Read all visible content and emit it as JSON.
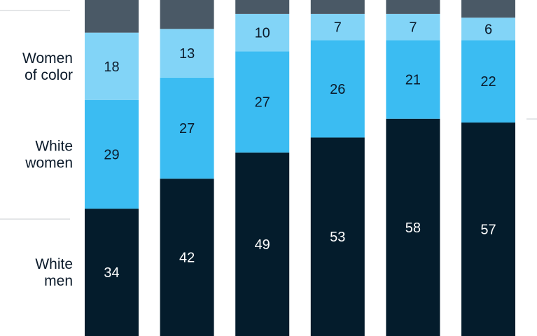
{
  "chart_data": {
    "type": "bar",
    "stacked": true,
    "categories": [
      "",
      "",
      "",
      "",
      "",
      ""
    ],
    "series": [
      {
        "name": "White men",
        "values": [
          34,
          42,
          49,
          53,
          58,
          57
        ]
      },
      {
        "name": "White women",
        "values": [
          29,
          27,
          27,
          26,
          21,
          22
        ]
      },
      {
        "name": "Women of color",
        "values": [
          18,
          13,
          10,
          7,
          7,
          6
        ]
      }
    ],
    "colors": {
      "White men": "#041c2c",
      "White women": "#3bbcf2",
      "Women of color": "#82d4f7",
      "top_segment": "#4a5966",
      "divider": "#c8cdd2"
    },
    "label_colors": {
      "White men": "#ffffff",
      "White women": "#0b1a2a",
      "Women of color": "#0b1a2a"
    },
    "row_labels": [
      {
        "series": "Women of color",
        "lines": [
          "Women",
          "of color"
        ]
      },
      {
        "series": "White women",
        "lines": [
          "White",
          "women"
        ]
      },
      {
        "series": "White men",
        "lines": [
          "White",
          "men"
        ]
      }
    ],
    "title": "",
    "xlabel": "",
    "ylabel": ""
  }
}
